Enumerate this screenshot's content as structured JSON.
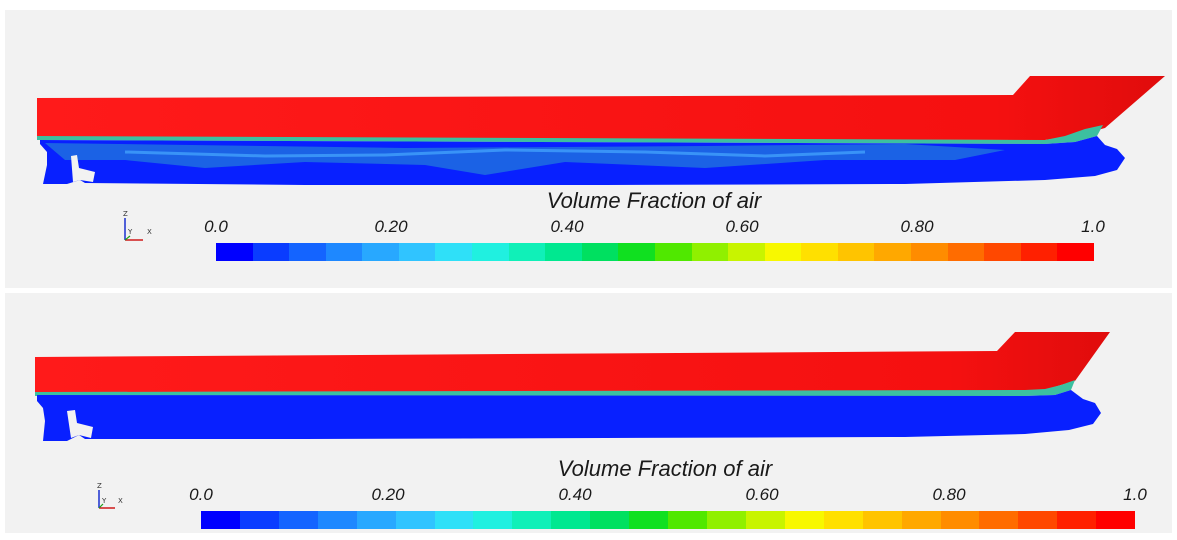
{
  "panels": [
    {
      "legend": {
        "title": "Volume Fraction of air",
        "ticks": [
          "0.0",
          "0.20",
          "0.40",
          "0.60",
          "0.80",
          "1.0"
        ],
        "range": [
          0.0,
          1.0
        ]
      },
      "axes_triad": {
        "z": "Z",
        "y": "Y",
        "x": "X"
      }
    },
    {
      "legend": {
        "title": "Volume Fraction of air",
        "ticks": [
          "0.0",
          "0.20",
          "0.40",
          "0.60",
          "0.80",
          "1.0"
        ],
        "range": [
          0.0,
          1.0
        ]
      },
      "axes_triad": {
        "z": "Z",
        "y": "Y",
        "x": "X"
      }
    }
  ],
  "colormap": [
    "#0000ff",
    "#0a3cff",
    "#1464ff",
    "#1e88ff",
    "#28a8ff",
    "#30c4ff",
    "#2fe0f8",
    "#20f0e0",
    "#10f0b8",
    "#00e890",
    "#00e060",
    "#10e020",
    "#50e800",
    "#90f000",
    "#c8f400",
    "#f8f800",
    "#ffe000",
    "#ffc400",
    "#ffa800",
    "#ff8c00",
    "#ff6c00",
    "#ff4800",
    "#ff2000",
    "#ff0000"
  ],
  "field_colors": {
    "air": "#ff1010",
    "water": "#0820ff",
    "mixed": "#1e6ee0"
  }
}
